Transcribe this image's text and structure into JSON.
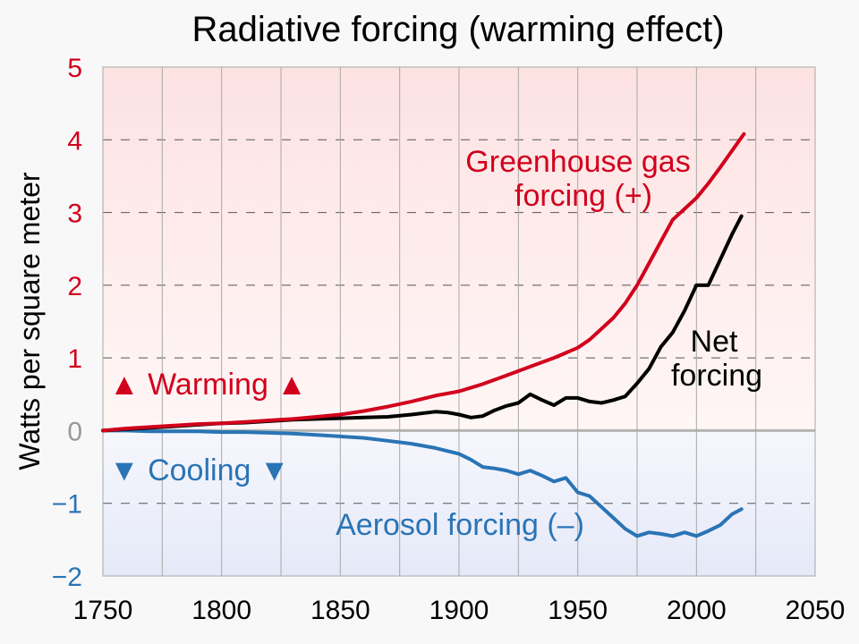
{
  "chart_data": {
    "type": "line",
    "title": "Radiative forcing (warming effect)",
    "xlabel": "",
    "ylabel": "Watts per square meter",
    "xlim": [
      1750,
      2050
    ],
    "ylim": [
      -2,
      5
    ],
    "x_ticks": [
      "1750",
      "1800",
      "1850",
      "1900",
      "1950",
      "2000",
      "2050"
    ],
    "y_ticks": [
      {
        "value": 5,
        "label": "5"
      },
      {
        "value": 4,
        "label": "4"
      },
      {
        "value": 3,
        "label": "3"
      },
      {
        "value": 2,
        "label": "2"
      },
      {
        "value": 1,
        "label": "1"
      },
      {
        "value": 0,
        "label": "0"
      },
      {
        "value": -1,
        "label": "−1"
      },
      {
        "value": -2,
        "label": "−2"
      }
    ],
    "colors": {
      "greenhouse": "#d1001c",
      "net": "#000000",
      "aerosol": "#2a74b5",
      "positive_tick": "#d1001c",
      "negative_tick": "#2a74b5",
      "zero_tick": "#999999",
      "warm_bg": "#fde8e8",
      "cool_bg": "#e7ebf8"
    },
    "annotations": {
      "warming": "▲ Warming ▲",
      "cooling": "▼ Cooling ▼",
      "greenhouse_line1": "Greenhouse gas",
      "greenhouse_line2": "forcing (+)",
      "net_line1": "Net",
      "net_line2": "forcing",
      "aerosol": "Aerosol forcing (–)"
    },
    "grid": true,
    "series": [
      {
        "key": "greenhouse",
        "x": [
          1750,
          1760,
          1770,
          1780,
          1790,
          1800,
          1810,
          1820,
          1830,
          1840,
          1850,
          1860,
          1870,
          1880,
          1890,
          1900,
          1910,
          1920,
          1930,
          1940,
          1945,
          1950,
          1955,
          1960,
          1965,
          1970,
          1975,
          1980,
          1985,
          1990,
          1995,
          2000,
          2005,
          2010,
          2015,
          2020
        ],
        "values": [
          0,
          0.03,
          0.05,
          0.07,
          0.09,
          0.1,
          0.12,
          0.14,
          0.16,
          0.19,
          0.22,
          0.27,
          0.33,
          0.4,
          0.48,
          0.54,
          0.64,
          0.76,
          0.88,
          1.0,
          1.07,
          1.14,
          1.25,
          1.4,
          1.55,
          1.75,
          2.0,
          2.3,
          2.6,
          2.9,
          3.05,
          3.2,
          3.4,
          3.62,
          3.85,
          4.08
        ]
      },
      {
        "key": "net",
        "x": [
          1750,
          1760,
          1770,
          1780,
          1790,
          1800,
          1810,
          1820,
          1830,
          1840,
          1850,
          1860,
          1870,
          1880,
          1890,
          1895,
          1900,
          1905,
          1910,
          1915,
          1920,
          1925,
          1930,
          1935,
          1940,
          1945,
          1950,
          1955,
          1960,
          1965,
          1970,
          1975,
          1980,
          1985,
          1990,
          1995,
          2000,
          2005,
          2010,
          2015,
          2019
        ],
        "values": [
          0,
          0.02,
          0.04,
          0.06,
          0.08,
          0.1,
          0.11,
          0.13,
          0.15,
          0.16,
          0.17,
          0.18,
          0.19,
          0.22,
          0.26,
          0.25,
          0.22,
          0.18,
          0.2,
          0.28,
          0.34,
          0.38,
          0.5,
          0.42,
          0.35,
          0.45,
          0.45,
          0.4,
          0.38,
          0.42,
          0.47,
          0.65,
          0.85,
          1.15,
          1.35,
          1.65,
          2.0,
          2.0,
          2.35,
          2.7,
          2.95
        ]
      },
      {
        "key": "aerosol",
        "x": [
          1750,
          1760,
          1770,
          1780,
          1790,
          1800,
          1810,
          1820,
          1830,
          1840,
          1850,
          1860,
          1870,
          1880,
          1890,
          1900,
          1905,
          1910,
          1915,
          1920,
          1925,
          1930,
          1935,
          1940,
          1945,
          1950,
          1955,
          1960,
          1965,
          1970,
          1975,
          1980,
          1985,
          1990,
          1995,
          2000,
          2005,
          2010,
          2015,
          2019
        ],
        "values": [
          0,
          0,
          -0.01,
          -0.01,
          -0.01,
          -0.02,
          -0.02,
          -0.03,
          -0.04,
          -0.06,
          -0.08,
          -0.1,
          -0.14,
          -0.18,
          -0.24,
          -0.32,
          -0.4,
          -0.5,
          -0.52,
          -0.55,
          -0.6,
          -0.55,
          -0.62,
          -0.7,
          -0.65,
          -0.85,
          -0.9,
          -1.05,
          -1.2,
          -1.35,
          -1.45,
          -1.4,
          -1.42,
          -1.45,
          -1.4,
          -1.45,
          -1.38,
          -1.3,
          -1.15,
          -1.08
        ]
      }
    ]
  }
}
